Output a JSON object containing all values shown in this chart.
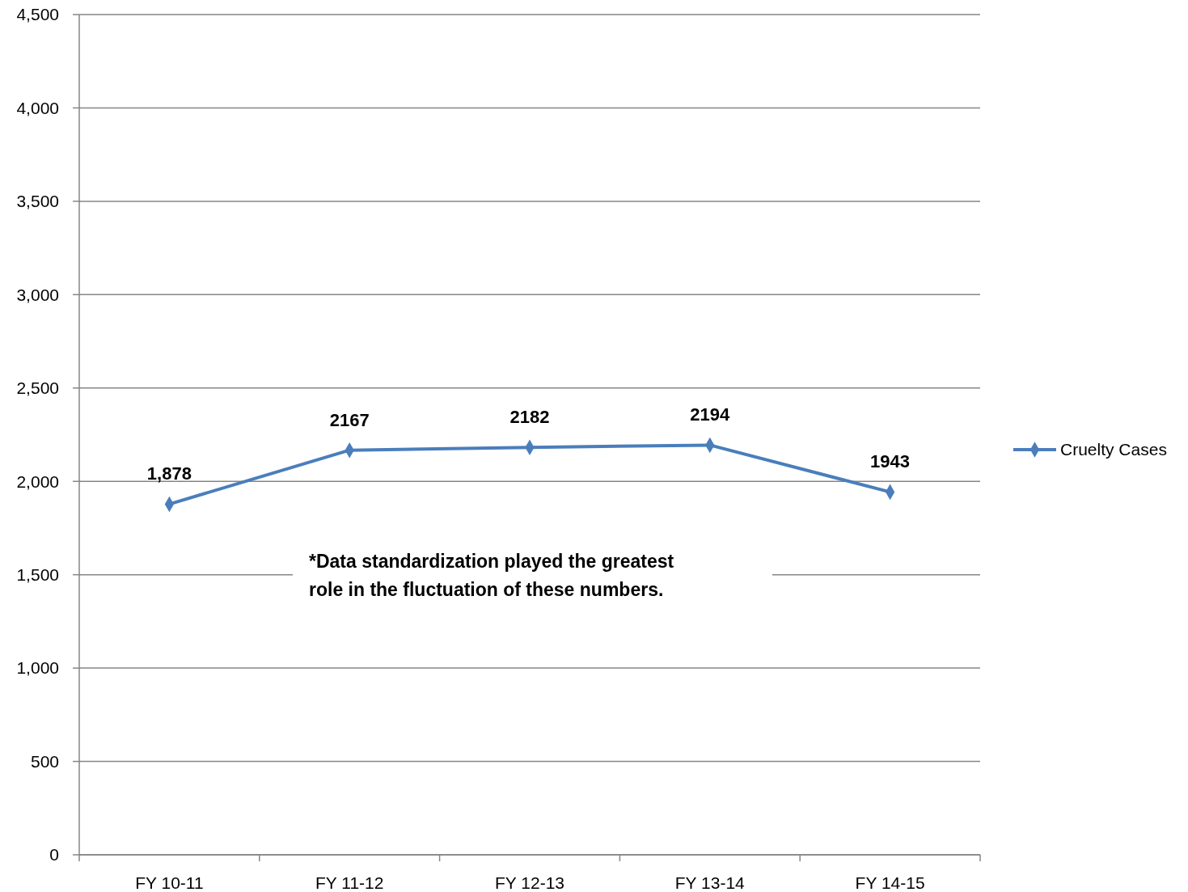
{
  "chart_data": {
    "type": "line",
    "categories": [
      "FY 10-11",
      "FY 11-12",
      "FY 12-13",
      "FY 13-14",
      "FY 14-15"
    ],
    "series": [
      {
        "name": "Cruelty Cases",
        "color": "#4a7ebb",
        "values": [
          1878,
          2167,
          2182,
          2194,
          1943
        ],
        "value_labels": [
          "1,878",
          "2167",
          "2182",
          "2194",
          "1943"
        ]
      }
    ],
    "ylim": [
      0,
      4500
    ],
    "yticks": [
      {
        "value": 0,
        "label": "0"
      },
      {
        "value": 500,
        "label": "500"
      },
      {
        "value": 1000,
        "label": "1,000"
      },
      {
        "value": 1500,
        "label": "1,500"
      },
      {
        "value": 2000,
        "label": "2,000"
      },
      {
        "value": 2500,
        "label": "2,500"
      },
      {
        "value": 3000,
        "label": "3,000"
      },
      {
        "value": 3500,
        "label": "3,500"
      },
      {
        "value": 4000,
        "label": "4,000"
      },
      {
        "value": 4500,
        "label": "4,500"
      }
    ],
    "grid": "y",
    "legend": "right",
    "marker": "diamond",
    "line_style": "solid",
    "annotations": [
      "*Data standardization played the greatest role in the fluctuation of these numbers."
    ]
  }
}
